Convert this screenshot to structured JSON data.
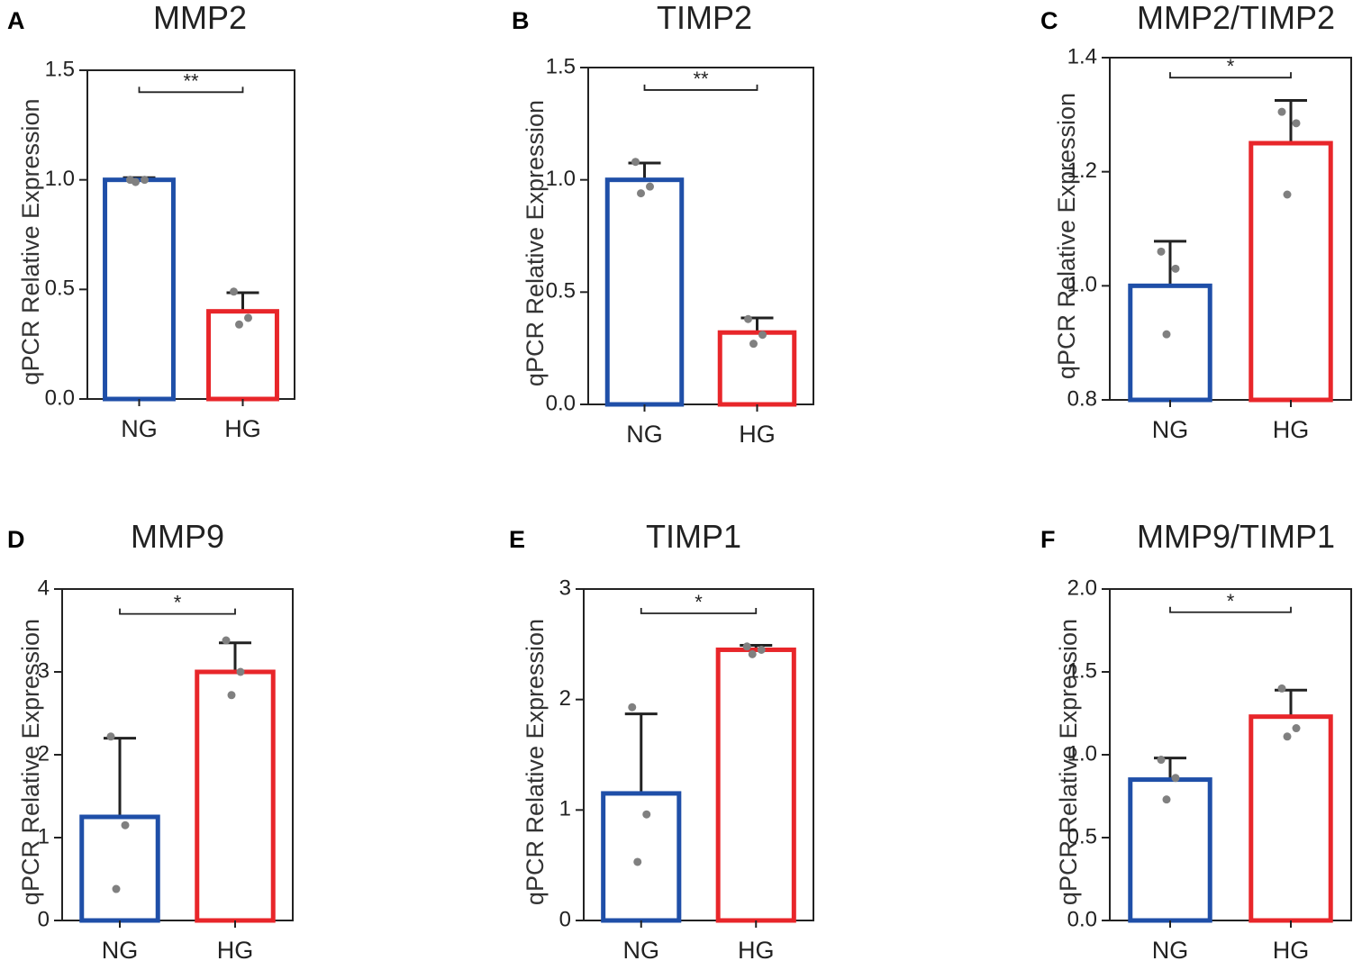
{
  "figure": {
    "colors": {
      "ng": "#1f4fa8",
      "hg": "#e8262a",
      "axis": "#222222",
      "dot": "#808080"
    },
    "y_axis_label": "qPCR Relative Expression"
  },
  "chart_data": [
    {
      "panel": "A",
      "title": "MMP2",
      "type": "bar",
      "categories": [
        "NG",
        "HG"
      ],
      "values": [
        1.0,
        0.4
      ],
      "errors": [
        0.01,
        0.085
      ],
      "points": [
        [
          1.0,
          1.0,
          0.99
        ],
        [
          0.49,
          0.37,
          0.34
        ]
      ],
      "ylabel": "qPCR Relative Expression",
      "ylim": [
        0,
        1.5
      ],
      "yticks": [
        0,
        0.5,
        1.0,
        1.5
      ],
      "ytick_labels": [
        "0.0",
        "0.5",
        "1.0",
        "1.5"
      ],
      "significance": "**",
      "sig_level": 1.4
    },
    {
      "panel": "B",
      "title": "TIMP2",
      "type": "bar",
      "categories": [
        "NG",
        "HG"
      ],
      "values": [
        1.0,
        0.32
      ],
      "errors": [
        0.075,
        0.065
      ],
      "points": [
        [
          1.08,
          0.97,
          0.94
        ],
        [
          0.38,
          0.31,
          0.27
        ]
      ],
      "ylabel": "qPCR Relative Expression",
      "ylim": [
        0,
        1.5
      ],
      "yticks": [
        0,
        0.5,
        1.0,
        1.5
      ],
      "ytick_labels": [
        "0.0",
        "0.5",
        "1.0",
        "1.5"
      ],
      "significance": "**",
      "sig_level": 1.4
    },
    {
      "panel": "C",
      "title": "MMP2/TIMP2",
      "type": "bar",
      "categories": [
        "NG",
        "HG"
      ],
      "values": [
        1.0,
        1.25
      ],
      "errors": [
        0.078,
        0.075
      ],
      "points": [
        [
          1.06,
          1.03,
          0.915
        ],
        [
          1.305,
          1.285,
          1.16
        ]
      ],
      "ylabel": "qPCR Relative Expression",
      "ylim": [
        0.8,
        1.4
      ],
      "yticks": [
        0.8,
        1.0,
        1.2,
        1.4
      ],
      "ytick_labels": [
        "0.8",
        "1.0",
        "1.2",
        "1.4"
      ],
      "significance": "*",
      "sig_level": 1.365
    },
    {
      "panel": "D",
      "title": "MMP9",
      "type": "bar",
      "categories": [
        "NG",
        "HG"
      ],
      "values": [
        1.25,
        3.0
      ],
      "errors": [
        0.95,
        0.35
      ],
      "points": [
        [
          2.22,
          1.15,
          0.38
        ],
        [
          3.38,
          3.0,
          2.72
        ]
      ],
      "ylabel": "qPCR Relative Expression",
      "ylim": [
        0,
        4
      ],
      "yticks": [
        0,
        1,
        2,
        3,
        4
      ],
      "ytick_labels": [
        "0",
        "1",
        "2",
        "3",
        "4"
      ],
      "significance": "*",
      "sig_level": 3.7
    },
    {
      "panel": "E",
      "title": "TIMP1",
      "type": "bar",
      "categories": [
        "NG",
        "HG"
      ],
      "values": [
        1.15,
        2.45
      ],
      "errors": [
        0.72,
        0.04
      ],
      "points": [
        [
          1.93,
          0.96,
          0.53
        ],
        [
          2.48,
          2.45,
          2.41
        ]
      ],
      "ylabel": "qPCR Relative Expression",
      "ylim": [
        0,
        3
      ],
      "yticks": [
        0,
        1,
        2,
        3
      ],
      "ytick_labels": [
        "0",
        "1",
        "2",
        "3"
      ],
      "significance": "*",
      "sig_level": 2.78
    },
    {
      "panel": "F",
      "title": "MMP9/TIMP1",
      "type": "bar",
      "categories": [
        "NG",
        "HG"
      ],
      "values": [
        0.85,
        1.23
      ],
      "errors": [
        0.13,
        0.16
      ],
      "points": [
        [
          0.97,
          0.86,
          0.73
        ],
        [
          1.4,
          1.16,
          1.11
        ]
      ],
      "ylabel": "qPCR Relative Expression",
      "ylim": [
        0,
        2.0
      ],
      "yticks": [
        0,
        0.5,
        1.0,
        1.5,
        2.0
      ],
      "ytick_labels": [
        "0.0",
        "0.5",
        "1.0",
        "1.5",
        "2.0"
      ],
      "significance": "*",
      "sig_level": 1.86
    }
  ]
}
